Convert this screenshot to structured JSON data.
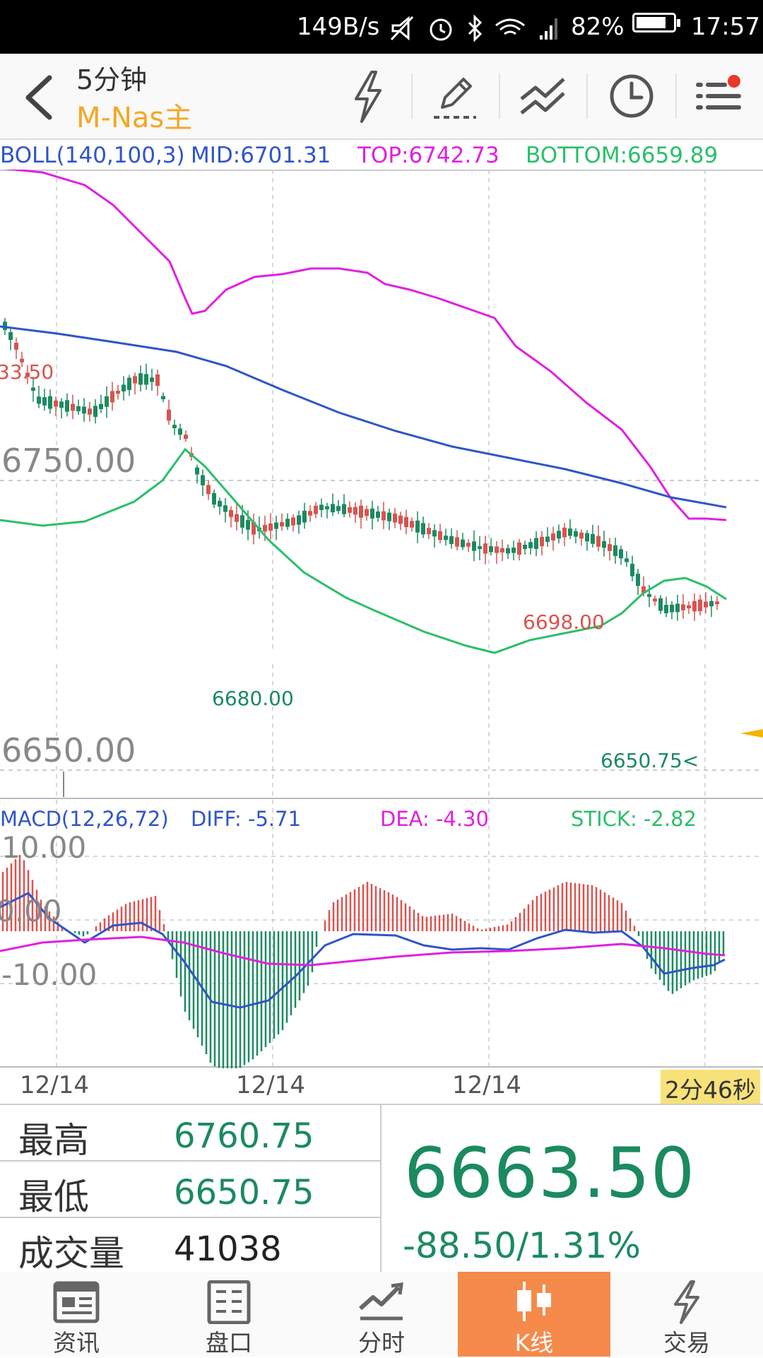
{
  "status_bar": {
    "speed": "149B/s",
    "battery_percent": "82%",
    "battery_level": 0.82,
    "time": "17:57",
    "icons": [
      "mute-icon",
      "alarm-icon",
      "bluetooth-icon",
      "wifi-icon",
      "signal-icon",
      "battery-icon"
    ]
  },
  "header": {
    "period": "5分钟",
    "symbol": "M-Nas主",
    "tools": [
      "lightning-icon",
      "draw-icon",
      "trendline-icon",
      "clock-icon",
      "menu-icon"
    ]
  },
  "boll": {
    "label": "BOLL(140,100,3)",
    "mid": "MID:6701.31",
    "top": "TOP:6742.73",
    "bottom": "BOTTOM:6659.89"
  },
  "price_labels": {
    "high_marker": "33.50",
    "grid_top": "6750.00",
    "grid_bottom": "6650.00",
    "peak": "6698.00",
    "trough": "6680.00",
    "low": "6650.75<"
  },
  "macd": {
    "label": "MACD(12,26,72)",
    "diff": "DIFF: -5.71",
    "dea": "DEA: -4.30",
    "stick": "STICK: -2.82",
    "axis": [
      "10.00",
      "0.00",
      "-10.00"
    ]
  },
  "dates": [
    "12/14",
    "12/14",
    "12/14"
  ],
  "countdown": "2分46秒",
  "stats": {
    "high_label": "最高",
    "high_value": "6760.75",
    "low_label": "最低",
    "low_value": "6650.75",
    "volume_label": "成交量",
    "volume_value": "41038",
    "last_price": "6663.50",
    "change": "-88.50/1.31%"
  },
  "nav": [
    {
      "label": "资讯",
      "icon": "news-icon"
    },
    {
      "label": "盘口",
      "icon": "orderbook-icon"
    },
    {
      "label": "分时",
      "icon": "timeshare-icon"
    },
    {
      "label": "K线",
      "icon": "candlestick-icon",
      "active": true
    },
    {
      "label": "交易",
      "icon": "trade-icon"
    }
  ],
  "colors": {
    "up": "#d9534f",
    "down": "#1b8a5f",
    "mid_line": "#2f55c9",
    "top_line": "#e020e0",
    "bottom_line": "#2bbf6a",
    "accent": "#f5a623",
    "active_tab": "#f58a4b"
  }
}
